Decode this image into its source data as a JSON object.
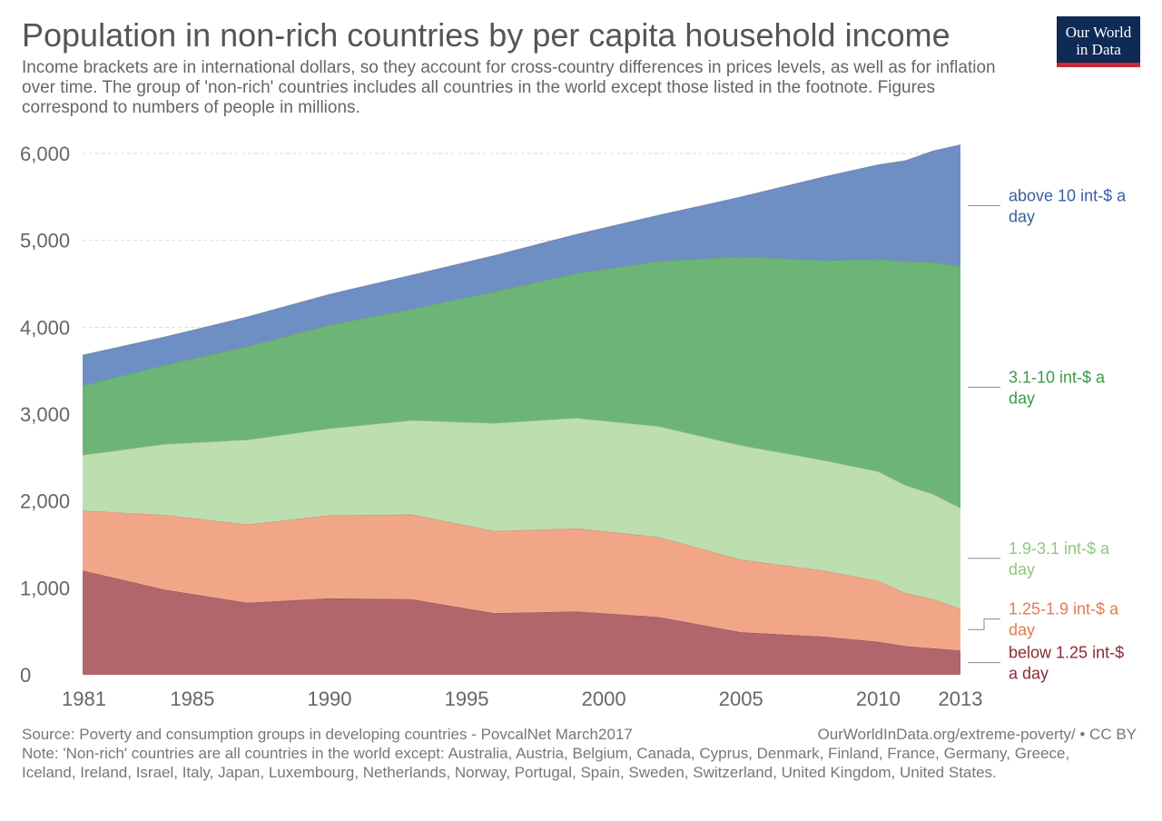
{
  "header": {
    "title": "Population in non-rich countries by per capita household income",
    "subtitle": "Income brackets are in international dollars, so they account for cross-country differences in prices levels, as well as for inflation over time. The group of 'non-rich' countries includes all countries in the world except those listed in the footnote. Figures correspond to numbers of people in millions.",
    "logo_line1": "Our World",
    "logo_line2": "in Data"
  },
  "footer": {
    "source": "Source: Poverty and consumption groups in developing countries - PovcalNet March2017",
    "credit": "OurWorldInData.org/extreme-poverty/ • CC BY",
    "note": "Note: 'Non-rich' countries are all countries in the world except: Australia, Austria, Belgium, Canada, Cyprus, Denmark, Finland, France, Germany, Greece, Iceland, Ireland, Israel, Italy, Japan, Luxembourg, Netherlands, Norway, Portugal, Spain, Sweden, Switzerland, United Kingdom, United States."
  },
  "chart_data": {
    "type": "area",
    "stacked": true,
    "x": [
      1981,
      1984,
      1987,
      1990,
      1993,
      1996,
      1999,
      2002,
      2005,
      2008,
      2010,
      2011,
      2012,
      2013
    ],
    "xticks": [
      1981,
      1985,
      1990,
      1995,
      2000,
      2005,
      2010,
      2013
    ],
    "yticks": [
      0,
      1000,
      2000,
      3000,
      4000,
      5000,
      6000
    ],
    "ytick_labels": [
      "0",
      "1,000",
      "2,000",
      "3,000",
      "4,000",
      "5,000",
      "6,000"
    ],
    "ylim": [
      0,
      6000
    ],
    "xlim": [
      1981,
      2013
    ],
    "grid": "horizontal dashed",
    "legend_placement": "right (inline labels)",
    "series": [
      {
        "name": "below 1.25 int-$ a day",
        "label_lines": [
          "below 1.25 int-$",
          "a day"
        ],
        "color": "#b0666b",
        "text_color": "#8b2a35",
        "values": [
          1200,
          980,
          830,
          880,
          870,
          710,
          730,
          665,
          490,
          440,
          380,
          330,
          305,
          280
        ]
      },
      {
        "name": "1.25-1.9 int-$ a day",
        "label_lines": [
          "1.25-1.9 int-$ a",
          "day"
        ],
        "color": "#f2a688",
        "text_color": "#e37b50",
        "values": [
          690,
          860,
          900,
          955,
          975,
          945,
          955,
          920,
          835,
          760,
          700,
          610,
          565,
          480
        ]
      },
      {
        "name": "1.9-3.1 int-$ a day",
        "label_lines": [
          "1.9-3.1 int-$ a",
          "day"
        ],
        "color": "#bddeae",
        "text_color": "#8fc77e",
        "values": [
          640,
          815,
          975,
          1000,
          1085,
          1240,
          1270,
          1275,
          1315,
          1270,
          1260,
          1240,
          1210,
          1160
        ]
      },
      {
        "name": "3.1-10 int-$ a day",
        "label_lines": [
          "3.1-10 int-$ a",
          "day"
        ],
        "color": "#6db577",
        "text_color": "#3a9a47",
        "values": [
          800,
          910,
          1075,
          1190,
          1280,
          1515,
          1665,
          1900,
          2170,
          2300,
          2440,
          2580,
          2670,
          2780
        ]
      },
      {
        "name": "above 10 int-$ a day",
        "label_lines": [
          "above 10 int-$ a",
          "day"
        ],
        "color": "#6e8fc4",
        "text_color": "#3a5f9e",
        "values": [
          350,
          325,
          340,
          355,
          390,
          415,
          450,
          530,
          690,
          960,
          1090,
          1160,
          1280,
          1400
        ]
      }
    ]
  }
}
